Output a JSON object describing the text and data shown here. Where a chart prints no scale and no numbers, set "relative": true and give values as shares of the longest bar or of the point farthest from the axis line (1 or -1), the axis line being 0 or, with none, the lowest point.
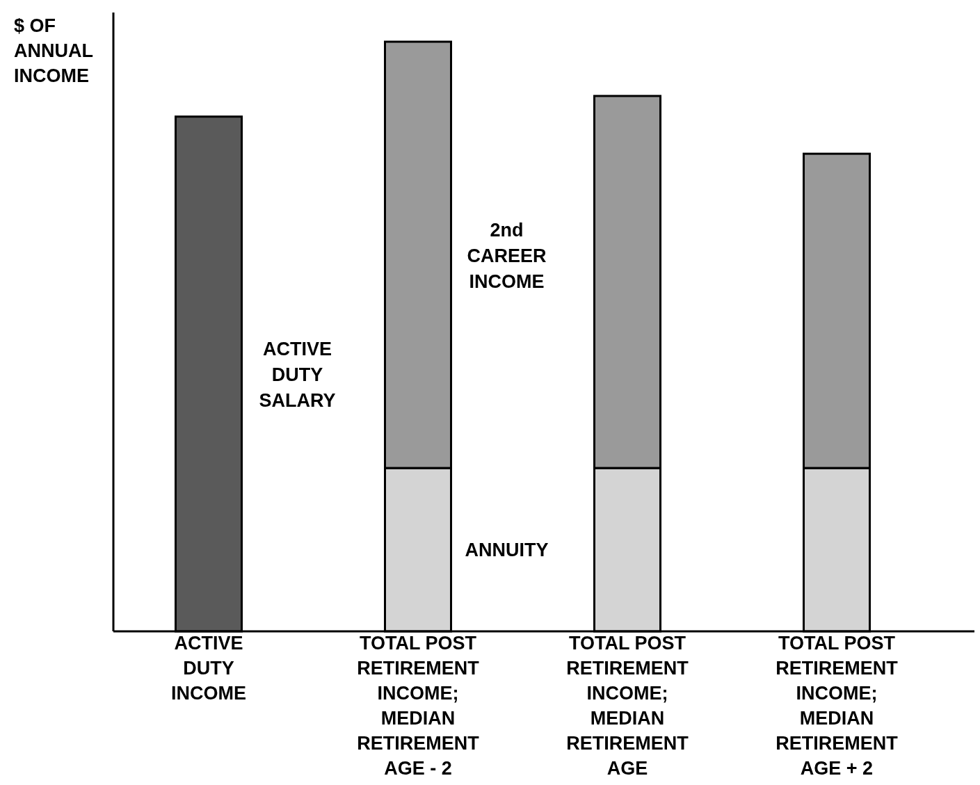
{
  "chart_data": {
    "type": "bar",
    "relative": true,
    "stacked": true,
    "ylabel": "$ OF ANNUAL INCOME",
    "categories": [
      "ACTIVE DUTY INCOME",
      "TOTAL POST RETIREMENT INCOME; MEDIAN RETIREMENT AGE - 2",
      "TOTAL POST RETIREMENT INCOME; MEDIAN RETIREMENT AGE",
      "TOTAL POST RETIREMENT INCOME; MEDIAN RETIREMENT AGE + 2"
    ],
    "series": [
      {
        "name": "ACTIVE DUTY SALARY",
        "color": "#5a5a5a",
        "values": [
          0.873,
          null,
          null,
          null
        ]
      },
      {
        "name": "ANNUITY",
        "color": "#d4d4d4",
        "values": [
          null,
          0.277,
          0.277,
          0.277
        ]
      },
      {
        "name": "2nd CAREER INCOME",
        "color": "#9a9a9a",
        "values": [
          null,
          0.723,
          0.631,
          0.533
        ]
      }
    ]
  }
}
